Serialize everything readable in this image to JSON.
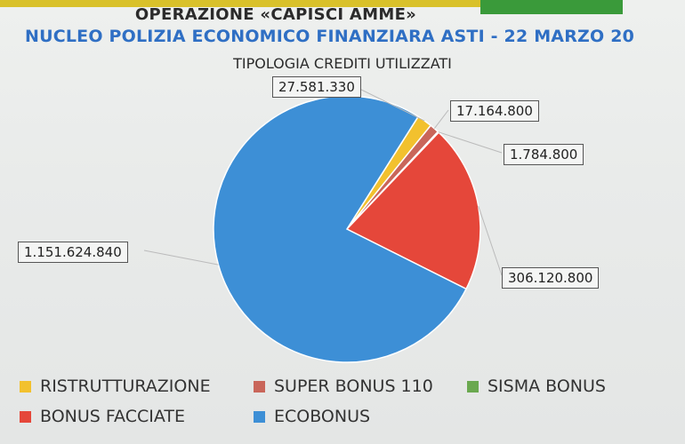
{
  "header": {
    "title": "OPERAZIONE «CAPISCI AMME»",
    "subtitle": "NUCLEO POLIZIA ECONOMICO FINANZIARA ASTI - 22 MARZO 20"
  },
  "chart_data": {
    "type": "pie",
    "title": "TIPOLOGIA CREDITI UTILIZZATI",
    "slices": [
      {
        "name": "RISTRUTTURAZIONE",
        "value": 27581330,
        "label": "27.581.330",
        "color": "#f2c12e"
      },
      {
        "name": "SUPER BONUS 110",
        "value": 17164800,
        "label": "17.164.800",
        "color": "#c9665a"
      },
      {
        "name": "SISMA BONUS",
        "value": 1784800,
        "label": "1.784.800",
        "color": "#6aa84f"
      },
      {
        "name": "BONUS FACCIATE",
        "value": 306120800,
        "label": "306.120.800",
        "color": "#e5473a"
      },
      {
        "name": "ECOBONUS",
        "value": 1151624840,
        "label": "1.151.624.840",
        "color": "#3d8fd6"
      }
    ],
    "legend": {
      "placement": "bottom",
      "rows": [
        [
          "RISTRUTTURAZIONE",
          "SUPER BONUS 110",
          "SISMA BONUS"
        ],
        [
          "BONUS FACCIATE",
          "ECOBONUS"
        ]
      ]
    }
  }
}
